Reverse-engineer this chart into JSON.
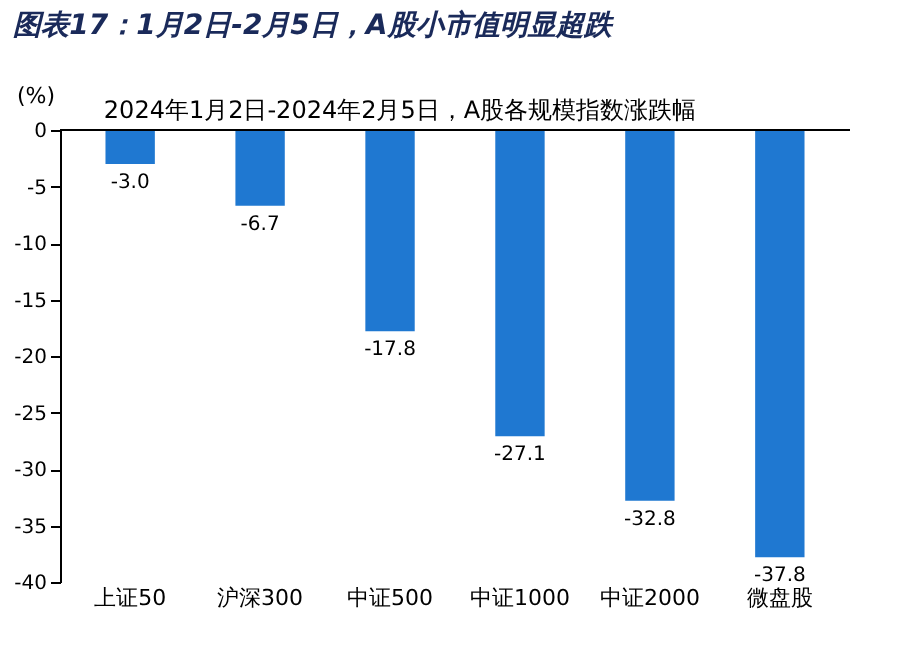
{
  "chart_data": {
    "type": "bar",
    "title": "图表17：1月2日-2月5日，A股小市值明显超跌",
    "subtitle": "2024年1月2日-2024年2月5日，A股各规模指数涨跌幅",
    "ylabel": "(%)",
    "categories": [
      "上证50",
      "沪深300",
      "中证500",
      "中证1000",
      "中证2000",
      "微盘股"
    ],
    "values": [
      -3.0,
      -6.7,
      -17.8,
      -27.1,
      -32.8,
      -37.8
    ],
    "color": "#1f78d1",
    "ylim": [
      -40,
      0
    ],
    "yticks": [
      -40,
      -35,
      -30,
      -25,
      -20,
      -15,
      -10,
      -5,
      0
    ],
    "value_labels": [
      "-3.0",
      "-6.7",
      "-17.8",
      "-27.1",
      "-32.8",
      "-37.8"
    ],
    "grid": false
  }
}
